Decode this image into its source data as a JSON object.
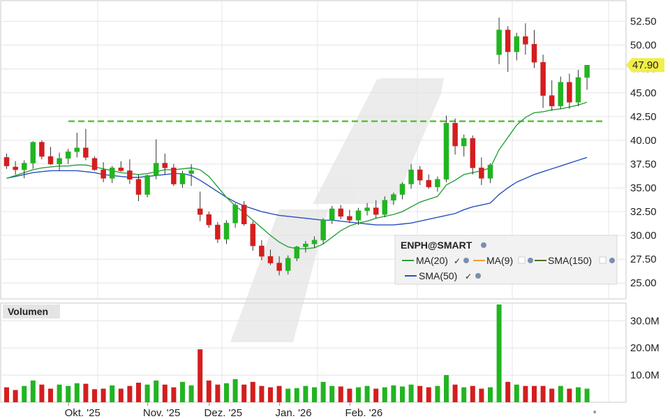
{
  "chart_data": {
    "type": "candlestick",
    "symbol": "ENPH@SMART",
    "y_ticks": [
      "52.50",
      "50.00",
      "47.50",
      "45.00",
      "42.50",
      "40.00",
      "37.50",
      "35.00",
      "32.50",
      "30.00",
      "27.50",
      "25.00"
    ],
    "y_tick_values": [
      52.5,
      50,
      47.5,
      45,
      42.5,
      40,
      37.5,
      35,
      32.5,
      30,
      27.5,
      25
    ],
    "ylim": [
      23.4,
      54.6
    ],
    "last_price": "47.90",
    "last_price_value": 47.9,
    "x_labels": [
      "Okt. '25",
      "Nov. '25",
      "Dez. '25",
      "Jan. '26",
      "Feb. '26"
    ],
    "x_label_bar_index": [
      7,
      16,
      23,
      31,
      39
    ],
    "resistance_level": 42.0,
    "legend": {
      "title": "ENPH@SMART",
      "items": [
        {
          "label": "MA(20)",
          "color": "#27a33a"
        },
        {
          "label": "MA(9)",
          "color": "#f0a030"
        },
        {
          "label": "SMA(150)",
          "color": "#556b1e"
        },
        {
          "label": "SMA(50)",
          "color": "#2a4fc0"
        }
      ]
    },
    "volume_panel": {
      "title": "Volumen",
      "y_ticks": [
        "30.0M",
        "20.0M",
        "10.0M"
      ],
      "y_tick_values": [
        30,
        20,
        10
      ],
      "ylim": [
        0,
        36
      ]
    },
    "ohlc": [
      [
        38.2,
        38.6,
        37.0,
        37.3
      ],
      [
        37.2,
        37.8,
        36.4,
        36.9
      ],
      [
        36.9,
        37.9,
        36.0,
        37.6
      ],
      [
        37.6,
        39.9,
        37.0,
        39.8
      ],
      [
        39.8,
        40.0,
        38.0,
        38.3
      ],
      [
        38.3,
        39.3,
        37.4,
        37.5
      ],
      [
        37.5,
        38.7,
        36.8,
        38.1
      ],
      [
        38.1,
        39.1,
        37.5,
        38.8
      ],
      [
        38.8,
        40.8,
        38.2,
        39.2
      ],
      [
        39.2,
        41.2,
        37.9,
        38.2
      ],
      [
        38.1,
        38.3,
        36.8,
        36.9
      ],
      [
        36.9,
        37.7,
        35.6,
        36.0
      ],
      [
        36.0,
        37.3,
        35.5,
        37.1
      ],
      [
        37.1,
        37.8,
        36.7,
        36.8
      ],
      [
        36.8,
        38.0,
        35.4,
        35.9
      ],
      [
        35.9,
        36.4,
        33.6,
        34.3
      ],
      [
        34.3,
        36.4,
        34.0,
        36.3
      ],
      [
        36.3,
        40.1,
        35.9,
        37.6
      ],
      [
        37.6,
        38.6,
        36.4,
        37.1
      ],
      [
        37.1,
        37.5,
        35.2,
        35.4
      ],
      [
        35.4,
        36.8,
        35.0,
        36.5
      ],
      [
        36.5,
        37.5,
        35.2,
        36.8
      ],
      [
        32.8,
        34.6,
        31.5,
        32.2
      ],
      [
        32.2,
        32.5,
        30.8,
        31.1
      ],
      [
        31.1,
        31.4,
        29.2,
        29.6
      ],
      [
        29.6,
        31.6,
        29.1,
        31.3
      ],
      [
        31.3,
        33.4,
        30.8,
        33.2
      ],
      [
        33.2,
        33.6,
        31.0,
        31.2
      ],
      [
        31.2,
        31.5,
        28.4,
        28.9
      ],
      [
        28.9,
        29.5,
        27.4,
        27.8
      ],
      [
        27.8,
        28.5,
        26.9,
        27.1
      ],
      [
        27.1,
        27.8,
        25.8,
        26.3
      ],
      [
        26.3,
        27.9,
        25.9,
        27.6
      ],
      [
        27.6,
        28.9,
        27.3,
        28.8
      ],
      [
        28.8,
        29.4,
        28.2,
        29.1
      ],
      [
        29.1,
        29.9,
        28.7,
        29.5
      ],
      [
        29.5,
        31.8,
        29.1,
        31.6
      ],
      [
        31.6,
        33.1,
        31.2,
        32.8
      ],
      [
        32.8,
        33.2,
        31.7,
        32.0
      ],
      [
        32.0,
        32.7,
        31.3,
        31.6
      ],
      [
        31.6,
        32.9,
        31.1,
        32.6
      ],
      [
        32.6,
        33.4,
        32.1,
        32.9
      ],
      [
        32.9,
        33.7,
        31.8,
        32.2
      ],
      [
        32.2,
        34.1,
        31.9,
        33.7
      ],
      [
        33.7,
        34.5,
        33.2,
        34.3
      ],
      [
        34.3,
        35.6,
        33.8,
        35.4
      ],
      [
        35.4,
        37.5,
        34.9,
        36.9
      ],
      [
        36.9,
        37.3,
        35.3,
        35.8
      ],
      [
        35.8,
        36.4,
        34.9,
        35.1
      ],
      [
        35.1,
        36.2,
        34.6,
        35.9
      ],
      [
        35.9,
        42.6,
        35.6,
        41.8
      ],
      [
        41.8,
        42.3,
        38.5,
        39.4
      ],
      [
        39.4,
        40.6,
        38.3,
        40.2
      ],
      [
        40.2,
        40.5,
        36.4,
        37.1
      ],
      [
        37.1,
        38.2,
        35.3,
        36.0
      ],
      [
        36.0,
        37.6,
        35.5,
        37.4
      ],
      [
        49.0,
        52.9,
        48.0,
        51.6
      ],
      [
        51.6,
        52.0,
        47.2,
        49.3
      ],
      [
        49.3,
        51.3,
        48.4,
        50.9
      ],
      [
        50.9,
        52.3,
        49.0,
        50.1
      ],
      [
        50.1,
        51.6,
        47.6,
        48.2
      ],
      [
        48.2,
        49.0,
        43.4,
        44.7
      ],
      [
        44.7,
        46.3,
        43.1,
        43.6
      ],
      [
        43.6,
        46.7,
        43.3,
        46.1
      ],
      [
        46.1,
        47.0,
        43.3,
        44.0
      ],
      [
        44.0,
        47.4,
        43.6,
        46.6
      ],
      [
        46.6,
        47.9,
        45.3,
        47.9
      ]
    ],
    "volume_millions": [
      5.5,
      4.5,
      6.0,
      8.0,
      6.5,
      5.0,
      6.5,
      6.0,
      7.0,
      6.8,
      4.8,
      5.0,
      6.2,
      5.0,
      6.0,
      7.2,
      6.5,
      8.0,
      6.5,
      5.5,
      7.5,
      6.2,
      19.5,
      8.0,
      6.5,
      7.0,
      8.5,
      6.5,
      7.5,
      6.0,
      5.5,
      6.0,
      5.0,
      5.2,
      6.0,
      5.5,
      7.5,
      6.0,
      5.8,
      5.0,
      5.5,
      6.0,
      5.0,
      5.5,
      6.2,
      5.8,
      6.5,
      6.0,
      5.5,
      6.0,
      10.0,
      6.5,
      5.5,
      6.0,
      5.0,
      5.5,
      36.0,
      7.5,
      6.5,
      6.0,
      6.0,
      6.0,
      5.0,
      6.0,
      5.0,
      5.5,
      5.0
    ],
    "ma20": [
      36.0,
      36.3,
      36.6,
      36.9,
      37.1,
      37.2,
      37.3,
      37.3,
      37.4,
      37.4,
      37.2,
      37.0,
      36.8,
      36.6,
      36.5,
      36.4,
      36.5,
      36.7,
      36.9,
      36.9,
      37.0,
      37.1,
      36.9,
      36.2,
      35.1,
      34.0,
      33.1,
      32.4,
      31.6,
      30.8,
      30.0,
      29.3,
      28.8,
      28.6,
      28.6,
      28.7,
      29.1,
      29.8,
      30.5,
      31.0,
      31.3,
      31.5,
      31.8,
      32.0,
      32.2,
      32.5,
      33.0,
      33.5,
      33.8,
      34.1,
      35.3,
      35.8,
      36.4,
      36.6,
      36.8,
      37.1,
      39.0,
      40.3,
      41.6,
      42.4,
      42.9,
      43.0,
      43.2,
      43.3,
      43.5,
      43.7,
      44.0
    ],
    "sma50": [
      36.0,
      36.2,
      36.4,
      36.6,
      36.7,
      36.8,
      36.8,
      36.8,
      36.8,
      36.7,
      36.6,
      36.4,
      36.3,
      36.2,
      36.1,
      36.1,
      36.2,
      36.3,
      36.4,
      36.5,
      36.5,
      36.3,
      35.8,
      35.2,
      34.6,
      34.0,
      33.5,
      33.1,
      32.8,
      32.5,
      32.3,
      32.1,
      32.0,
      31.9,
      31.8,
      31.7,
      31.6,
      31.6,
      31.5,
      31.4,
      31.3,
      31.2,
      31.1,
      31.1,
      31.1,
      31.2,
      31.3,
      31.5,
      31.7,
      31.9,
      32.1,
      32.3,
      32.7,
      33.0,
      33.2,
      33.4,
      34.3,
      35.0,
      35.6,
      36.0,
      36.4,
      36.7,
      37.0,
      37.3,
      37.6,
      37.9,
      38.2
    ]
  }
}
